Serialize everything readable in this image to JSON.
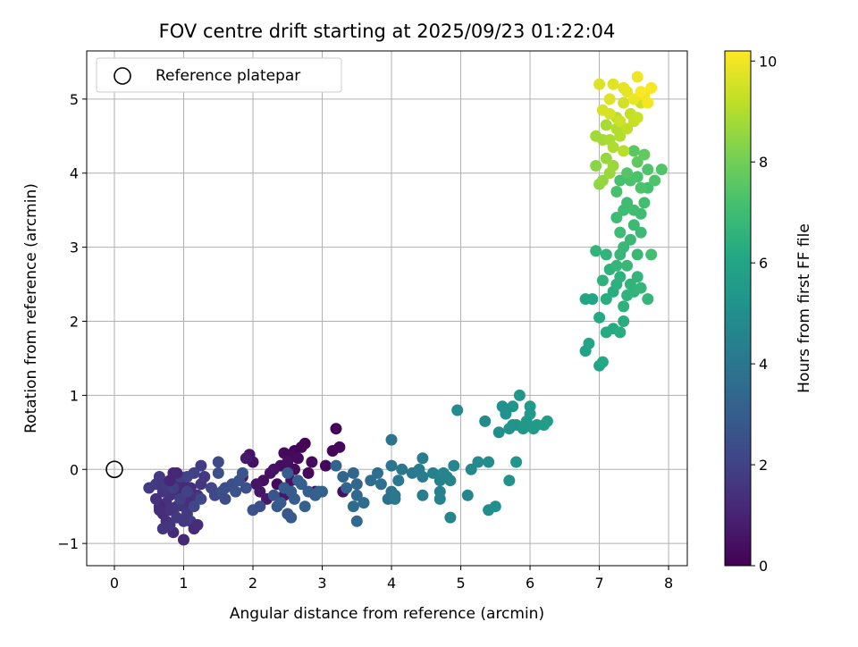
{
  "chart_data": {
    "type": "scatter",
    "title": "FOV centre drift starting at 2025/09/23 01:22:04",
    "xlabel": "Angular distance from reference (arcmin)",
    "ylabel": "Rotation from reference (arcmin)",
    "xlim": [
      -0.4,
      8.27
    ],
    "ylim": [
      -1.3,
      5.65
    ],
    "xticks": [
      0,
      1,
      2,
      3,
      4,
      5,
      6,
      7,
      8
    ],
    "yticks": [
      -1,
      0,
      1,
      2,
      3,
      4,
      5
    ],
    "grid": true,
    "legend": {
      "label": "Reference platepar",
      "location": "top-left"
    },
    "reference_point": {
      "x": 0,
      "y": 0
    },
    "colorbar": {
      "label": "Hours from first FF file",
      "min": 0,
      "max": 10.2,
      "ticks": [
        0,
        2,
        4,
        6,
        8,
        10
      ],
      "colormap": "viridis"
    },
    "point_columns": [
      "x",
      "y",
      "hours"
    ],
    "points": [
      [
        2.75,
        0.35,
        0.1
      ],
      [
        2.7,
        0.3,
        0.15
      ],
      [
        2.6,
        0.25,
        0.1
      ],
      [
        2.55,
        0.2,
        0.2
      ],
      [
        2.65,
        0.15,
        0.3
      ],
      [
        2.45,
        0.22,
        0.25
      ],
      [
        2.5,
        0.1,
        0.4
      ],
      [
        2.4,
        0.05,
        0.35
      ],
      [
        2.3,
        0.0,
        0.45
      ],
      [
        2.25,
        -0.05,
        0.5
      ],
      [
        2.15,
        -0.15,
        0.4
      ],
      [
        2.05,
        -0.2,
        0.55
      ],
      [
        2.1,
        -0.3,
        0.6
      ],
      [
        1.95,
        0.2,
        0.5
      ],
      [
        2.0,
        0.1,
        0.45
      ],
      [
        1.9,
        0.15,
        0.7
      ],
      [
        1.85,
        -0.1,
        0.65
      ],
      [
        2.2,
        -0.4,
        0.7
      ],
      [
        2.35,
        -0.2,
        0.3
      ],
      [
        2.8,
        -0.05,
        0.2
      ],
      [
        2.85,
        0.1,
        0.25
      ],
      [
        2.9,
        -0.3,
        0.3
      ],
      [
        3.05,
        0.05,
        0.2
      ],
      [
        3.15,
        0.25,
        0.15
      ],
      [
        3.2,
        0.55,
        0.1
      ],
      [
        3.25,
        0.3,
        0.2
      ],
      [
        3.3,
        -0.3,
        0.4
      ],
      [
        2.55,
        -0.15,
        0.5
      ],
      [
        2.45,
        -0.35,
        0.6
      ],
      [
        2.6,
        0.0,
        0.35
      ],
      [
        0.85,
        -0.05,
        1.1
      ],
      [
        0.9,
        -0.15,
        1.2
      ],
      [
        1.0,
        -0.2,
        1.3
      ],
      [
        0.95,
        -0.3,
        1.25
      ],
      [
        1.05,
        -0.35,
        1.4
      ],
      [
        1.1,
        -0.25,
        1.35
      ],
      [
        0.8,
        -0.35,
        1.5
      ],
      [
        0.75,
        -0.45,
        1.45
      ],
      [
        0.7,
        -0.3,
        1.6
      ],
      [
        0.65,
        -0.5,
        1.2
      ],
      [
        0.7,
        -0.6,
        1.3
      ],
      [
        0.75,
        -0.7,
        1.4
      ],
      [
        0.8,
        -0.55,
        1.5
      ],
      [
        0.9,
        -0.5,
        1.55
      ],
      [
        1.0,
        -0.5,
        1.6
      ],
      [
        1.05,
        -0.6,
        1.7
      ],
      [
        1.1,
        -0.7,
        1.8
      ],
      [
        1.15,
        -0.8,
        1.2
      ],
      [
        1.2,
        -0.75,
        1.3
      ],
      [
        1.0,
        -0.95,
        1.1
      ],
      [
        0.85,
        -0.85,
        1.25
      ],
      [
        1.1,
        -0.45,
        1.35
      ],
      [
        1.2,
        -0.35,
        1.5
      ],
      [
        1.25,
        -0.2,
        1.6
      ],
      [
        1.3,
        -0.1,
        1.7
      ],
      [
        1.25,
        0.05,
        1.8
      ],
      [
        1.15,
        -0.05,
        1.9
      ],
      [
        1.05,
        -0.1,
        2.0
      ],
      [
        0.95,
        -0.1,
        1.95
      ],
      [
        0.5,
        -0.25,
        1.8
      ],
      [
        0.6,
        -0.2,
        1.7
      ],
      [
        0.65,
        -0.1,
        1.65
      ],
      [
        0.75,
        -0.2,
        1.75
      ],
      [
        0.85,
        -0.25,
        1.85
      ],
      [
        0.95,
        -0.4,
        1.9
      ],
      [
        1.05,
        -0.3,
        2.0
      ],
      [
        1.15,
        -0.5,
        2.1
      ],
      [
        1.25,
        -0.4,
        2.2
      ],
      [
        0.8,
        -0.75,
        1.6
      ],
      [
        0.9,
        -0.65,
        1.7
      ],
      [
        1.0,
        -0.7,
        1.65
      ],
      [
        0.7,
        -0.8,
        1.55
      ],
      [
        0.6,
        -0.4,
        1.45
      ],
      [
        0.65,
        -0.55,
        1.35
      ],
      [
        0.9,
        -0.05,
        1.15
      ],
      [
        0.8,
        -0.15,
        1.05
      ],
      [
        1.4,
        -0.25,
        2.1
      ],
      [
        1.45,
        -0.35,
        2.2
      ],
      [
        1.5,
        0.1,
        2.3
      ],
      [
        1.5,
        -0.05,
        2.4
      ],
      [
        1.55,
        -0.3,
        2.5
      ],
      [
        1.6,
        -0.4,
        2.3
      ],
      [
        1.7,
        -0.2,
        2.4
      ],
      [
        1.75,
        -0.3,
        2.55
      ],
      [
        1.8,
        -0.15,
        2.6
      ],
      [
        1.9,
        -0.25,
        2.5
      ],
      [
        2.0,
        -0.55,
        2.6
      ],
      [
        2.1,
        -0.5,
        2.4
      ],
      [
        1.85,
        -0.05,
        2.7
      ],
      [
        1.6,
        -0.25,
        2.45
      ],
      [
        2.3,
        -0.35,
        2.7
      ],
      [
        2.35,
        -0.5,
        2.8
      ],
      [
        2.4,
        -0.45,
        2.9
      ],
      [
        2.5,
        -0.6,
        2.75
      ],
      [
        2.55,
        -0.65,
        2.85
      ],
      [
        2.45,
        -0.25,
        2.95
      ],
      [
        2.6,
        -0.4,
        3.0
      ],
      [
        2.7,
        -0.2,
        3.05
      ],
      [
        2.75,
        -0.5,
        3.1
      ],
      [
        2.8,
        -0.3,
        3.0
      ],
      [
        2.9,
        -0.35,
        3.1
      ],
      [
        3.0,
        -0.3,
        3.15
      ],
      [
        2.65,
        -0.15,
        3.1
      ],
      [
        2.55,
        -0.3,
        2.9
      ],
      [
        2.5,
        -0.05,
        3.0
      ],
      [
        2.95,
        -0.3,
        3.2
      ],
      [
        3.2,
        0.05,
        3.3
      ],
      [
        3.3,
        -0.1,
        3.4
      ],
      [
        3.35,
        -0.25,
        3.3
      ],
      [
        3.45,
        -0.05,
        3.35
      ],
      [
        3.5,
        -0.2,
        3.4
      ],
      [
        3.5,
        -0.35,
        3.45
      ],
      [
        3.45,
        -0.5,
        3.5
      ],
      [
        3.5,
        -0.7,
        3.55
      ],
      [
        3.6,
        -0.45,
        3.6
      ],
      [
        3.7,
        -0.15,
        3.65
      ],
      [
        3.8,
        -0.05,
        3.7
      ],
      [
        3.85,
        -0.2,
        3.75
      ],
      [
        3.95,
        -0.4,
        3.8
      ],
      [
        4.0,
        -0.3,
        3.85
      ],
      [
        4.0,
        0.4,
        3.9
      ],
      [
        4.0,
        0.05,
        3.95
      ],
      [
        4.05,
        -0.4,
        4.0
      ],
      [
        4.1,
        -0.15,
        4.05
      ],
      [
        4.15,
        0.0,
        4.0
      ],
      [
        4.05,
        -0.35,
        4.1
      ],
      [
        4.3,
        -0.05,
        4.15
      ],
      [
        4.4,
        0.0,
        4.2
      ],
      [
        4.45,
        -0.1,
        4.25
      ],
      [
        4.45,
        0.15,
        4.3
      ],
      [
        4.45,
        -0.35,
        4.3
      ],
      [
        4.6,
        -0.05,
        4.4
      ],
      [
        4.7,
        -0.15,
        4.45
      ],
      [
        4.7,
        -0.3,
        4.5
      ],
      [
        4.75,
        -0.05,
        4.55
      ],
      [
        4.8,
        -0.1,
        4.55
      ],
      [
        4.85,
        -0.15,
        4.6
      ],
      [
        4.9,
        0.05,
        4.65
      ],
      [
        4.85,
        -0.65,
        4.6
      ],
      [
        4.7,
        -0.4,
        4.5
      ],
      [
        4.95,
        0.8,
        4.8
      ],
      [
        5.1,
        -0.35,
        4.7
      ],
      [
        5.15,
        0.0,
        4.75
      ],
      [
        5.25,
        0.1,
        4.8
      ],
      [
        5.35,
        0.65,
        4.85
      ],
      [
        5.4,
        -0.55,
        4.9
      ],
      [
        5.4,
        0.1,
        4.95
      ],
      [
        5.5,
        -0.5,
        5.0
      ],
      [
        5.55,
        0.5,
        5.05
      ],
      [
        5.6,
        0.85,
        5.1
      ],
      [
        5.65,
        0.75,
        5.15
      ],
      [
        5.7,
        0.55,
        5.2
      ],
      [
        5.7,
        -0.15,
        5.2
      ],
      [
        5.75,
        0.85,
        5.25
      ],
      [
        5.8,
        0.6,
        5.3
      ],
      [
        5.8,
        0.1,
        5.3
      ],
      [
        5.85,
        1.0,
        5.35
      ],
      [
        5.9,
        0.55,
        5.4
      ],
      [
        5.95,
        0.65,
        5.45
      ],
      [
        6.0,
        0.85,
        5.5
      ],
      [
        6.0,
        0.75,
        5.5
      ],
      [
        6.05,
        0.55,
        5.55
      ],
      [
        6.1,
        0.6,
        5.55
      ],
      [
        6.2,
        0.6,
        5.6
      ],
      [
        6.25,
        0.65,
        5.6
      ],
      [
        5.65,
        0.8,
        5.15
      ],
      [
        5.75,
        0.6,
        5.25
      ],
      [
        6.8,
        1.6,
        5.9
      ],
      [
        6.85,
        1.7,
        5.95
      ],
      [
        6.8,
        2.3,
        6.0
      ],
      [
        6.9,
        2.3,
        6.05
      ],
      [
        7.0,
        1.4,
        6.0
      ],
      [
        7.05,
        1.45,
        6.1
      ],
      [
        7.0,
        2.05,
        6.15
      ],
      [
        7.1,
        1.85,
        6.2
      ],
      [
        7.2,
        1.9,
        6.25
      ],
      [
        7.3,
        1.85,
        6.3
      ],
      [
        7.35,
        2.0,
        6.3
      ],
      [
        7.1,
        2.3,
        6.35
      ],
      [
        7.2,
        2.4,
        6.4
      ],
      [
        7.25,
        2.5,
        6.45
      ],
      [
        7.3,
        2.6,
        6.5
      ],
      [
        7.35,
        2.2,
        6.5
      ],
      [
        7.4,
        2.35,
        6.55
      ],
      [
        7.45,
        2.5,
        6.6
      ],
      [
        7.5,
        2.4,
        6.6
      ],
      [
        7.55,
        2.6,
        6.65
      ],
      [
        7.6,
        2.45,
        6.7
      ],
      [
        7.7,
        2.3,
        6.7
      ],
      [
        7.05,
        2.55,
        6.5
      ],
      [
        7.15,
        2.7,
        6.55
      ],
      [
        7.1,
        2.9,
        6.6
      ],
      [
        6.95,
        2.95,
        6.65
      ],
      [
        7.25,
        2.75,
        6.7
      ],
      [
        7.3,
        2.9,
        6.75
      ],
      [
        7.35,
        3.0,
        6.8
      ],
      [
        7.4,
        2.75,
        6.8
      ],
      [
        7.45,
        3.1,
        6.85
      ],
      [
        7.55,
        2.9,
        6.85
      ],
      [
        7.6,
        3.2,
        6.9
      ],
      [
        7.5,
        3.3,
        6.9
      ],
      [
        7.25,
        3.4,
        6.95
      ],
      [
        7.3,
        3.2,
        6.95
      ],
      [
        7.35,
        3.5,
        7.0
      ],
      [
        7.4,
        3.6,
        7.0
      ],
      [
        7.5,
        3.5,
        7.05
      ],
      [
        7.6,
        3.45,
        7.05
      ],
      [
        7.65,
        3.6,
        7.1
      ],
      [
        7.75,
        2.9,
        7.1
      ],
      [
        7.7,
        3.8,
        7.15
      ],
      [
        7.25,
        3.75,
        7.2
      ],
      [
        7.3,
        3.9,
        7.2
      ],
      [
        7.45,
        3.9,
        7.25
      ],
      [
        7.55,
        3.95,
        7.3
      ],
      [
        7.6,
        3.8,
        7.3
      ],
      [
        7.7,
        4.05,
        7.35
      ],
      [
        7.8,
        3.9,
        7.35
      ],
      [
        7.9,
        4.05,
        7.4
      ],
      [
        7.4,
        4.0,
        7.45
      ],
      [
        7.5,
        4.3,
        7.6
      ],
      [
        7.55,
        4.15,
        7.65
      ],
      [
        7.65,
        4.25,
        7.7
      ],
      [
        6.95,
        4.1,
        8.4
      ],
      [
        7.0,
        3.85,
        8.5
      ],
      [
        7.05,
        3.9,
        8.55
      ],
      [
        7.1,
        4.2,
        8.6
      ],
      [
        7.15,
        4.0,
        8.65
      ],
      [
        7.2,
        4.1,
        8.7
      ],
      [
        6.95,
        4.5,
        8.75
      ],
      [
        7.05,
        4.45,
        8.8
      ],
      [
        7.1,
        4.65,
        8.85
      ],
      [
        7.15,
        4.45,
        8.9
      ],
      [
        7.2,
        4.35,
        8.95
      ],
      [
        7.25,
        4.6,
        9.0
      ],
      [
        7.3,
        4.5,
        9.05
      ],
      [
        7.35,
        4.3,
        9.1
      ],
      [
        7.25,
        4.75,
        9.15
      ],
      [
        7.4,
        4.6,
        9.2
      ],
      [
        7.45,
        4.8,
        9.25
      ],
      [
        7.5,
        4.7,
        9.3
      ],
      [
        7.55,
        4.75,
        9.35
      ],
      [
        7.6,
        4.95,
        9.4
      ],
      [
        7.3,
        4.7,
        9.45
      ],
      [
        7.35,
        4.95,
        9.5
      ],
      [
        7.15,
        4.8,
        9.55
      ],
      [
        7.05,
        4.85,
        9.6
      ],
      [
        7.0,
        5.2,
        9.65
      ],
      [
        7.15,
        5.0,
        9.7
      ],
      [
        7.2,
        5.2,
        9.75
      ],
      [
        7.35,
        5.15,
        9.8
      ],
      [
        7.4,
        5.1,
        9.85
      ],
      [
        7.5,
        5.0,
        9.9
      ],
      [
        7.55,
        5.3,
        9.95
      ],
      [
        7.65,
        5.05,
        10.0
      ],
      [
        7.7,
        4.95,
        10.05
      ],
      [
        7.75,
        5.15,
        10.1
      ],
      [
        7.6,
        5.1,
        10.15
      ]
    ]
  }
}
